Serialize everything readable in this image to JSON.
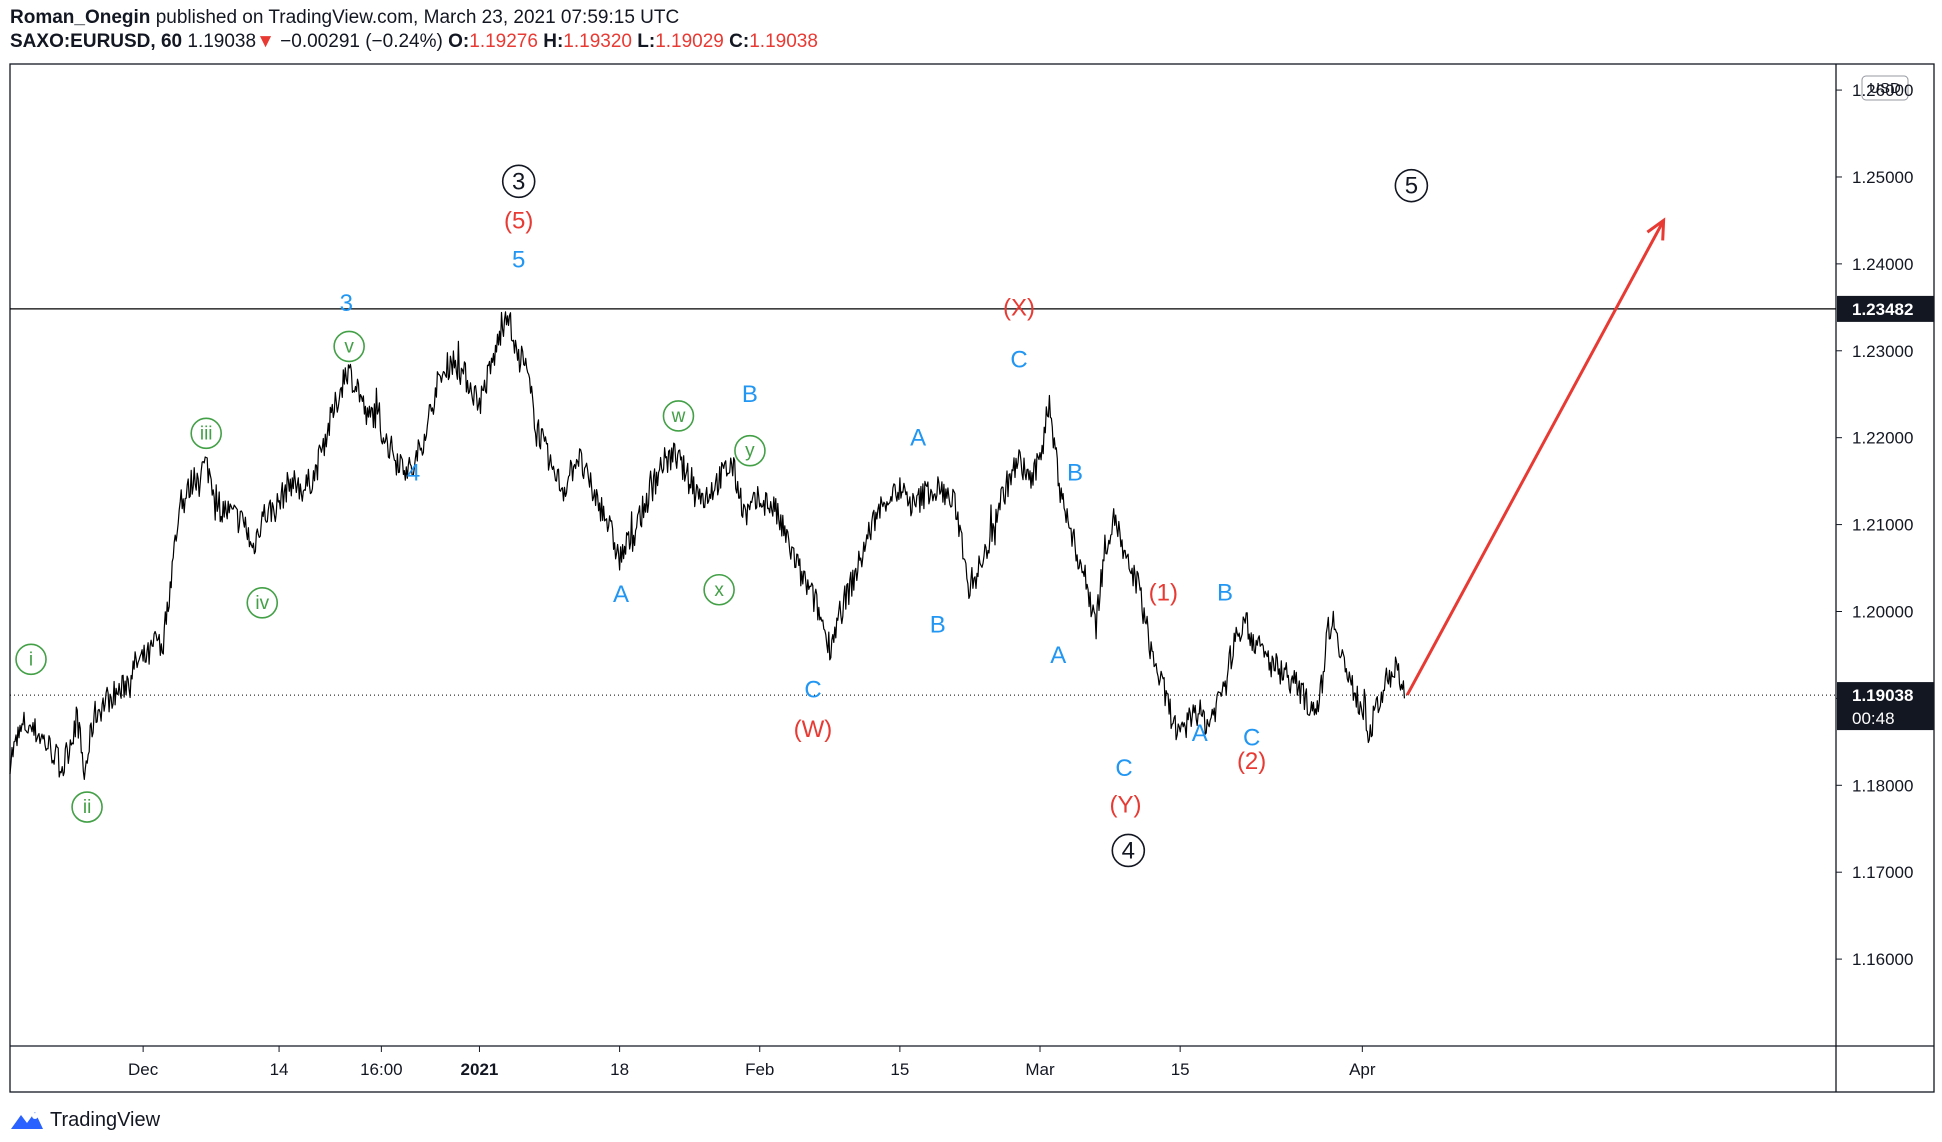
{
  "header": {
    "author": "Roman_Onegin",
    "published_text": "published on TradingView.com, March 23, 2021 07:59:15 UTC",
    "symbol": "SAXO:EURUSD, 60",
    "last": "1.19038",
    "change": "−0.00291 (−0.24%)",
    "o_label": "O:",
    "o_value": "1.19276",
    "h_label": "H:",
    "h_value": "1.19320",
    "l_label": "L:",
    "l_value": "1.19029",
    "c_label": "C:",
    "c_value": "1.19038"
  },
  "footer": {
    "brand": "TradingView"
  },
  "colors": {
    "red": "#e83a33",
    "blue": "#2196f3",
    "green": "#43a047",
    "black": "#131722"
  },
  "chart_data": {
    "type": "line",
    "title": "SAXO:EURUSD, 60",
    "currency_label": "USD",
    "y_range": [
      1.15,
      1.263
    ],
    "y_ticks": [
      "1.16000",
      "1.17000",
      "1.18000",
      "1.19000",
      "1.20000",
      "1.21000",
      "1.22000",
      "1.23000",
      "1.24000",
      "1.25000",
      "1.26000"
    ],
    "x_range_days": [
      0,
      130.3
    ],
    "x_ticks": [
      {
        "day": 9.5,
        "label": "Dec",
        "bold": false
      },
      {
        "day": 19.2,
        "label": "14",
        "bold": false
      },
      {
        "day": 26.5,
        "label": "16:00",
        "bold": false
      },
      {
        "day": 33.5,
        "label": "2021",
        "bold": true
      },
      {
        "day": 43.5,
        "label": "18",
        "bold": false
      },
      {
        "day": 53.5,
        "label": "Feb",
        "bold": false
      },
      {
        "day": 63.5,
        "label": "15",
        "bold": false
      },
      {
        "day": 73.5,
        "label": "Mar",
        "bold": false
      },
      {
        "day": 83.5,
        "label": "15",
        "bold": false
      },
      {
        "day": 96.5,
        "label": "Apr",
        "bold": false
      }
    ],
    "horizontal_line": {
      "value": 1.23482,
      "label": "1.23482"
    },
    "current_price": {
      "value": 1.19038,
      "label": "1.19038",
      "countdown": "00:48"
    },
    "price_path": [
      [
        0,
        1.183
      ],
      [
        1,
        1.187
      ],
      [
        2,
        1.186
      ],
      [
        3,
        1.184
      ],
      [
        3.8,
        1.182
      ],
      [
        4.8,
        1.188
      ],
      [
        5.3,
        1.181
      ],
      [
        6,
        1.188
      ],
      [
        7,
        1.19
      ],
      [
        8,
        1.191
      ],
      [
        9,
        1.194
      ],
      [
        10,
        1.195
      ],
      [
        10.5,
        1.197
      ],
      [
        10.8,
        1.195
      ],
      [
        11.5,
        1.204
      ],
      [
        12,
        1.211
      ],
      [
        13,
        1.215
      ],
      [
        14,
        1.217
      ],
      [
        15,
        1.212
      ],
      [
        16,
        1.211
      ],
      [
        16.8,
        1.21
      ],
      [
        17.3,
        1.207
      ],
      [
        18,
        1.211
      ],
      [
        19,
        1.212
      ],
      [
        20,
        1.215
      ],
      [
        21,
        1.214
      ],
      [
        21.8,
        1.216
      ],
      [
        22.5,
        1.22
      ],
      [
        23.5,
        1.225
      ],
      [
        24,
        1.228
      ],
      [
        24.8,
        1.226
      ],
      [
        25.5,
        1.222
      ],
      [
        26,
        1.223
      ],
      [
        27,
        1.219
      ],
      [
        28,
        1.217
      ],
      [
        28.7,
        1.216
      ],
      [
        29.5,
        1.22
      ],
      [
        30.5,
        1.226
      ],
      [
        31.5,
        1.229
      ],
      [
        32.5,
        1.227
      ],
      [
        33.5,
        1.224
      ],
      [
        34.5,
        1.229
      ],
      [
        35.5,
        1.235
      ],
      [
        36,
        1.23
      ],
      [
        36.8,
        1.228
      ],
      [
        37.5,
        1.222
      ],
      [
        38.5,
        1.217
      ],
      [
        39.5,
        1.214
      ],
      [
        40.5,
        1.218
      ],
      [
        41.5,
        1.214
      ],
      [
        42.5,
        1.211
      ],
      [
        43.5,
        1.206
      ],
      [
        44.5,
        1.209
      ],
      [
        45.5,
        1.213
      ],
      [
        46.5,
        1.217
      ],
      [
        47.5,
        1.218
      ],
      [
        48.5,
        1.215
      ],
      [
        49.5,
        1.213
      ],
      [
        50.5,
        1.215
      ],
      [
        51.5,
        1.217
      ],
      [
        52.5,
        1.211
      ],
      [
        53.5,
        1.213
      ],
      [
        54.5,
        1.212
      ],
      [
        55.5,
        1.208
      ],
      [
        56.5,
        1.204
      ],
      [
        57.5,
        1.201
      ],
      [
        58.5,
        1.196
      ],
      [
        59.5,
        1.201
      ],
      [
        60.5,
        1.205
      ],
      [
        61.5,
        1.21
      ],
      [
        62.5,
        1.213
      ],
      [
        63.5,
        1.214
      ],
      [
        64.5,
        1.212
      ],
      [
        65.5,
        1.214
      ],
      [
        66.5,
        1.214
      ],
      [
        67.5,
        1.212
      ],
      [
        68.5,
        1.203
      ],
      [
        69.5,
        1.206
      ],
      [
        70.5,
        1.212
      ],
      [
        71.5,
        1.216
      ],
      [
        72,
        1.217
      ],
      [
        73,
        1.215
      ],
      [
        73.5,
        1.218
      ],
      [
        74.1,
        1.224
      ],
      [
        74.8,
        1.216
      ],
      [
        75.5,
        1.21
      ],
      [
        76.5,
        1.205
      ],
      [
        77.5,
        1.199
      ],
      [
        78.2,
        1.208
      ],
      [
        78.9,
        1.211
      ],
      [
        79.5,
        1.206
      ],
      [
        80.5,
        1.203
      ],
      [
        81.5,
        1.195
      ],
      [
        82.5,
        1.19
      ],
      [
        83.5,
        1.185
      ],
      [
        84.5,
        1.189
      ],
      [
        85.5,
        1.187
      ],
      [
        86.5,
        1.191
      ],
      [
        87.5,
        1.197
      ],
      [
        88,
        1.199
      ],
      [
        89,
        1.196
      ],
      [
        90,
        1.194
      ],
      [
        91,
        1.193
      ],
      [
        92,
        1.191
      ],
      [
        92.8,
        1.189
      ],
      [
        93.5,
        1.19
      ],
      [
        94,
        1.198
      ],
      [
        94.5,
        1.199
      ],
      [
        95.5,
        1.192
      ],
      [
        96.5,
        1.189
      ],
      [
        97,
        1.186
      ],
      [
        98,
        1.191
      ],
      [
        98.8,
        1.194
      ],
      [
        99.5,
        1.19
      ]
    ],
    "projection": [
      [
        99.7,
        1.19038
      ],
      [
        118,
        1.245
      ]
    ],
    "labels": [
      {
        "text": "i",
        "day": 1.5,
        "price": 1.1945,
        "color": "green",
        "circled": true
      },
      {
        "text": "ii",
        "day": 5.5,
        "price": 1.1775,
        "color": "green",
        "circled": true
      },
      {
        "text": "iii",
        "day": 14.0,
        "price": 1.2205,
        "color": "green",
        "circled": true
      },
      {
        "text": "iv",
        "day": 18.0,
        "price": 1.201,
        "color": "green",
        "circled": true
      },
      {
        "text": "v",
        "day": 24.2,
        "price": 1.2305,
        "color": "green",
        "circled": true
      },
      {
        "text": "3",
        "day": 24.0,
        "price": 1.2355,
        "color": "blue",
        "circled": false
      },
      {
        "text": "4",
        "day": 28.8,
        "price": 1.216,
        "color": "blue",
        "circled": false
      },
      {
        "text": "3",
        "day": 36.3,
        "price": 1.2495,
        "color": "black",
        "circled": true
      },
      {
        "text": "(5)",
        "day": 36.3,
        "price": 1.245,
        "color": "red",
        "circled": false
      },
      {
        "text": "5",
        "day": 36.3,
        "price": 1.2405,
        "color": "blue",
        "circled": false
      },
      {
        "text": "A",
        "day": 43.6,
        "price": 1.202,
        "color": "blue",
        "circled": false
      },
      {
        "text": "w",
        "day": 47.7,
        "price": 1.2225,
        "color": "green",
        "circled": true
      },
      {
        "text": "x",
        "day": 50.6,
        "price": 1.2025,
        "color": "green",
        "circled": true
      },
      {
        "text": "y",
        "day": 52.8,
        "price": 1.2185,
        "color": "green",
        "circled": true
      },
      {
        "text": "B",
        "day": 52.8,
        "price": 1.225,
        "color": "blue",
        "circled": false
      },
      {
        "text": "C",
        "day": 57.3,
        "price": 1.191,
        "color": "blue",
        "circled": false
      },
      {
        "text": "(W)",
        "day": 57.3,
        "price": 1.1865,
        "color": "red",
        "circled": false
      },
      {
        "text": "A",
        "day": 64.8,
        "price": 1.22,
        "color": "blue",
        "circled": false
      },
      {
        "text": "B",
        "day": 66.2,
        "price": 1.1985,
        "color": "blue",
        "circled": false
      },
      {
        "text": "(X)",
        "day": 72.0,
        "price": 1.235,
        "color": "red",
        "circled": false
      },
      {
        "text": "C",
        "day": 72.0,
        "price": 1.229,
        "color": "blue",
        "circled": false
      },
      {
        "text": "B",
        "day": 76.0,
        "price": 1.216,
        "color": "blue",
        "circled": false
      },
      {
        "text": "A",
        "day": 74.8,
        "price": 1.195,
        "color": "blue",
        "circled": false
      },
      {
        "text": "C",
        "day": 79.5,
        "price": 1.182,
        "color": "blue",
        "circled": false
      },
      {
        "text": "(Y)",
        "day": 79.6,
        "price": 1.1778,
        "color": "red",
        "circled": false
      },
      {
        "text": "4",
        "day": 79.8,
        "price": 1.1725,
        "color": "black",
        "circled": true
      },
      {
        "text": "(1)",
        "day": 82.3,
        "price": 1.2022,
        "color": "red",
        "circled": false
      },
      {
        "text": "B",
        "day": 86.7,
        "price": 1.2022,
        "color": "blue",
        "circled": false
      },
      {
        "text": "A",
        "day": 84.9,
        "price": 1.186,
        "color": "blue",
        "circled": false
      },
      {
        "text": "C",
        "day": 88.6,
        "price": 1.1855,
        "color": "blue",
        "circled": false
      },
      {
        "text": "(2)",
        "day": 88.6,
        "price": 1.1828,
        "color": "red",
        "circled": false
      },
      {
        "text": "5",
        "day": 100.0,
        "price": 1.249,
        "color": "black",
        "circled": true
      }
    ]
  }
}
